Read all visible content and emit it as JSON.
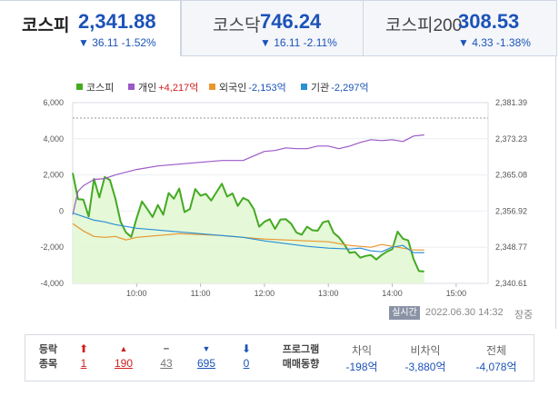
{
  "tabs": [
    {
      "name": "코스피",
      "value": "2,341.88",
      "change": "▼ 36.11 -1.52%",
      "active": true
    },
    {
      "name": "코스닥",
      "value": "746.24",
      "change": "▼ 16.11 -2.11%",
      "active": false
    },
    {
      "name": "코스피200",
      "value": "308.53",
      "change": "▼ 4.33 -1.38%",
      "active": false
    }
  ],
  "legend": [
    {
      "name": "코스피",
      "value": "",
      "color": "#44aa22"
    },
    {
      "name": "개인",
      "value": "+4,217억",
      "color": "#9b59c6",
      "value_color": "#d21f1f"
    },
    {
      "name": "외국인",
      "value": "-2,153억",
      "color": "#e8962e",
      "value_color": "#1c53b8"
    },
    {
      "name": "기관",
      "value": "-2,297억",
      "color": "#2a8fd4",
      "value_color": "#1c53b8"
    }
  ],
  "chart_data": {
    "type": "line",
    "x_ticks": [
      "10:00",
      "11:00",
      "12:00",
      "13:00",
      "14:00",
      "15:00"
    ],
    "x_range": [
      "09:00",
      "15:30"
    ],
    "y_left_ticks": [
      "6,000",
      "4,000",
      "2,000",
      "0",
      "-2,000",
      "-4,000"
    ],
    "y_left_range": [
      -4000,
      6000
    ],
    "y_right_ticks": [
      "2,381.39",
      "2,373.23",
      "2,365.08",
      "2,356.92",
      "2,348.77",
      "2,340.61"
    ],
    "y_right_range": [
      2340.61,
      2381.39
    ],
    "series": [
      {
        "name": "코스피",
        "axis": "right",
        "color": "#44aa22",
        "fill": "#e2f7d4",
        "x_minutes": [
          0,
          5,
          10,
          15,
          20,
          25,
          30,
          35,
          40,
          45,
          50,
          55,
          60,
          65,
          70,
          75,
          80,
          85,
          90,
          95,
          100,
          105,
          110,
          115,
          120,
          125,
          130,
          135,
          140,
          145,
          150,
          155,
          160,
          165,
          170,
          175,
          180,
          185,
          190,
          195,
          200,
          205,
          210,
          215,
          220,
          225,
          230,
          235,
          240,
          245,
          250,
          255,
          260,
          265,
          270,
          275,
          280,
          285,
          290,
          295,
          300,
          305,
          310,
          315,
          320,
          325,
          330
        ],
        "values": [
          2365.5,
          2359.6,
          2359.5,
          2355.7,
          2364.2,
          2360.0,
          2364.6,
          2363.9,
          2359.8,
          2354.5,
          2352.1,
          2351.1,
          2355.3,
          2359.1,
          2357.4,
          2355.6,
          2358.3,
          2356.1,
          2361.0,
          2359.7,
          2362.0,
          2356.7,
          2357.4,
          2361.9,
          2360.4,
          2360.8,
          2359.3,
          2361.2,
          2363.1,
          2360.2,
          2360.9,
          2358.1,
          2359.9,
          2359.3,
          2357.4,
          2353.4,
          2354.5,
          2355.1,
          2352.9,
          2355.0,
          2355.1,
          2354.1,
          2352.1,
          2351.6,
          2353.4,
          2352.6,
          2352.5,
          2354.4,
          2354.7,
          2352.0,
          2351.0,
          2349.4,
          2347.5,
          2347.7,
          2346.4,
          2346.8,
          2347.0,
          2346.0,
          2347.0,
          2347.8,
          2348.3,
          2352.3,
          2350.7,
          2350.3,
          2346.1,
          2343.4,
          2343.3
        ]
      },
      {
        "name": "개인",
        "axis": "left",
        "color": "#9b59c6",
        "x_minutes": [
          0,
          5,
          10,
          20,
          30,
          40,
          60,
          80,
          100,
          110,
          120,
          140,
          160,
          170,
          180,
          190,
          200,
          210,
          220,
          230,
          240,
          250,
          260,
          270,
          280,
          290,
          300,
          310,
          320,
          330
        ],
        "values": [
          -200,
          1100,
          1400,
          1750,
          1800,
          2000,
          2300,
          2500,
          2600,
          2650,
          2700,
          2800,
          2800,
          3050,
          3300,
          3350,
          3500,
          3450,
          3450,
          3600,
          3600,
          3450,
          3600,
          3800,
          3950,
          3900,
          3950,
          3850,
          4150,
          4217
        ]
      },
      {
        "name": "외국인",
        "axis": "left",
        "color": "#e8962e",
        "x_minutes": [
          0,
          10,
          20,
          30,
          40,
          50,
          60,
          80,
          100,
          120,
          140,
          160,
          180,
          200,
          220,
          240,
          260,
          280,
          290,
          300,
          310,
          320,
          330
        ],
        "values": [
          -700,
          -1100,
          -1400,
          -1450,
          -1400,
          -1600,
          -1450,
          -1350,
          -1250,
          -1300,
          -1350,
          -1450,
          -1550,
          -1600,
          -1650,
          -1700,
          -1900,
          -2000,
          -1850,
          -1950,
          -2050,
          -2150,
          -2153
        ]
      },
      {
        "name": "기관",
        "axis": "left",
        "color": "#2a8fd4",
        "x_minutes": [
          0,
          10,
          20,
          30,
          40,
          60,
          80,
          100,
          120,
          140,
          160,
          180,
          200,
          220,
          240,
          260,
          270,
          280,
          290,
          300,
          310,
          320,
          330
        ],
        "values": [
          -100,
          -300,
          -500,
          -600,
          -750,
          -950,
          -1050,
          -1150,
          -1250,
          -1350,
          -1450,
          -1650,
          -1800,
          -1950,
          -2050,
          -2100,
          -2050,
          -2200,
          -2250,
          -2000,
          -1900,
          -2300,
          -2297
        ]
      }
    ]
  },
  "status": {
    "badge": "실시간",
    "timestamp": "2022.06.30 14:32",
    "market": "장중"
  },
  "stats": {
    "label_line1": "등락",
    "label_line2": "종목",
    "items": [
      {
        "icon": "up-limit-arrow-icon",
        "arrow": "⬆",
        "count": "1",
        "kind": "up-red"
      },
      {
        "icon": "up-triangle-icon",
        "arrow": "▲",
        "count": "190",
        "kind": "up-red"
      },
      {
        "icon": "flat-dash-icon",
        "arrow": "━",
        "count": "43",
        "kind": "flat"
      },
      {
        "icon": "down-triangle-icon",
        "arrow": "▼",
        "count": "695",
        "kind": "down-blue"
      },
      {
        "icon": "down-limit-arrow-icon",
        "arrow": "⬇",
        "count": "0",
        "kind": "down-blue"
      }
    ]
  },
  "program": {
    "label_line1": "프로그램",
    "label_line2": "매매동향",
    "items": [
      {
        "label": "차익",
        "value": "-198억"
      },
      {
        "label": "비차익",
        "value": "-3,880억"
      },
      {
        "label": "전체",
        "value": "-4,078억"
      }
    ]
  }
}
